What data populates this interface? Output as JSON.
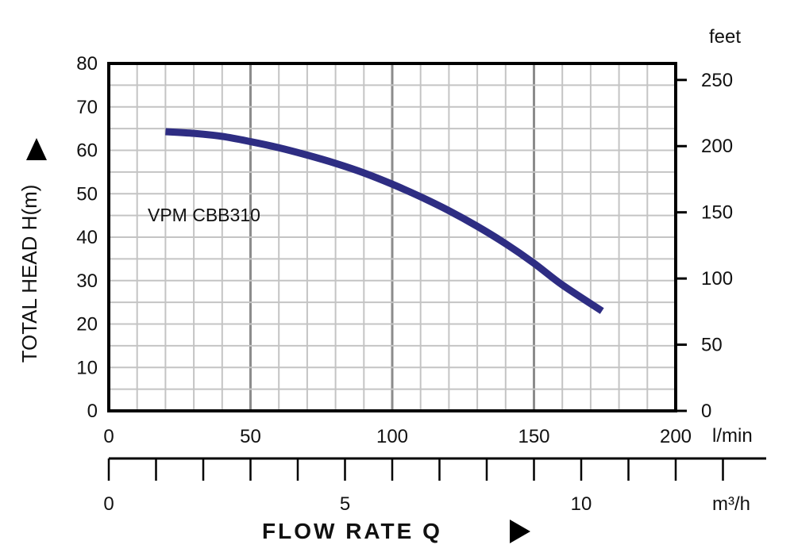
{
  "chart_data": {
    "type": "line",
    "series": [
      {
        "name": "VPM CBB310",
        "color": "#2e2d83",
        "x": [
          20,
          30,
          40,
          50,
          60,
          70,
          80,
          90,
          100,
          110,
          120,
          130,
          140,
          150,
          160,
          174
        ],
        "y": [
          64.3,
          63.9,
          63.2,
          62.0,
          60.6,
          58.9,
          57.0,
          54.8,
          52.2,
          49.3,
          46.1,
          42.5,
          38.5,
          34.0,
          29.0,
          23.0
        ]
      }
    ],
    "xlim": [
      0,
      200
    ],
    "ylim": [
      0,
      80
    ],
    "x_ticks": [
      0,
      50,
      100,
      150,
      200
    ],
    "y_ticks": [
      0,
      10,
      20,
      30,
      40,
      50,
      60,
      70,
      80
    ],
    "y2_ticks": [
      0,
      50,
      100,
      150,
      200,
      250
    ],
    "y2_unit_factor": 3.28084,
    "x2_ticks": [
      0,
      5,
      10
    ],
    "x2_unit_factor": 0.06,
    "ylabel": "TOTAL HEAD H(m)",
    "y2label": "feet",
    "xunit": "l/min",
    "x2unit": "m³/h",
    "xlabel": "FLOW RATE Q",
    "grid": true,
    "annotation": "VPM CBB310"
  }
}
